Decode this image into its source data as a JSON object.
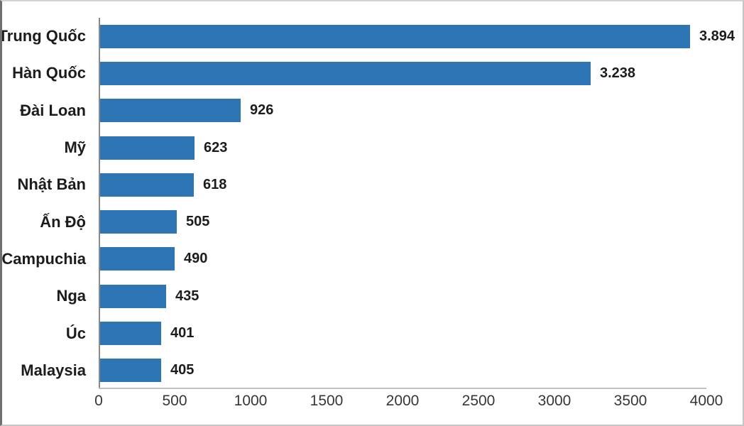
{
  "chart_data": {
    "type": "bar",
    "orientation": "horizontal",
    "title": "",
    "xlabel": "",
    "ylabel": "",
    "categories": [
      "Trung Quốc",
      "Hàn Quốc",
      "Đài Loan",
      "Mỹ",
      "Nhật Bản",
      "Ấn Độ",
      "Campuchia",
      "Nga",
      "Úc",
      "Malaysia"
    ],
    "values": [
      3894,
      3238,
      926,
      623,
      618,
      505,
      490,
      435,
      401,
      405
    ],
    "value_labels": [
      "3.894",
      "3.238",
      "926",
      "623",
      "618",
      "505",
      "490",
      "435",
      "401",
      "405"
    ],
    "xlim": [
      0,
      4000
    ],
    "x_ticks": [
      0,
      500,
      1000,
      1500,
      2000,
      2500,
      3000,
      3500,
      4000
    ],
    "x_tick_labels": [
      "0",
      "500",
      "1000",
      "1500",
      "2000",
      "2500",
      "3000",
      "3500",
      "4000"
    ],
    "grid": false,
    "legend": false,
    "bar_color": "#2e75b5",
    "label_color": "#1c1c1c",
    "tick_color": "#363636",
    "y_axis_line_color": "#8a8a8a",
    "x_axis_line_color": "#c2c2c2",
    "background_color": "#ffffff"
  }
}
